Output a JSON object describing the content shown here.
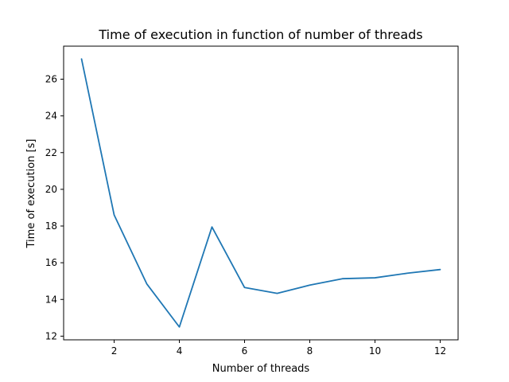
{
  "chart_data": {
    "type": "line",
    "title": "Time of execution in function of number of threads",
    "xlabel": "Number of threads",
    "ylabel": "Time of execution [s]",
    "x": [
      1,
      2,
      3,
      4,
      5,
      6,
      7,
      8,
      9,
      10,
      11,
      12
    ],
    "series": [
      {
        "values": [
          27.1,
          18.6,
          14.85,
          12.5,
          17.95,
          14.65,
          14.33,
          14.78,
          15.13,
          15.18,
          15.43,
          15.63
        ]
      }
    ],
    "xlim": [
      0.45,
      12.55
    ],
    "ylim": [
      11.8,
      27.8
    ],
    "xticks": [
      2,
      4,
      6,
      8,
      10,
      12
    ],
    "xtick_labels": [
      "2",
      "4",
      "6",
      "8",
      "10",
      "12"
    ],
    "yticks": [
      12,
      14,
      16,
      18,
      20,
      22,
      24,
      26
    ],
    "ytick_labels": [
      "12",
      "14",
      "16",
      "18",
      "20",
      "22",
      "24",
      "26"
    ],
    "grid": false,
    "line_color": "#1f77b4"
  }
}
